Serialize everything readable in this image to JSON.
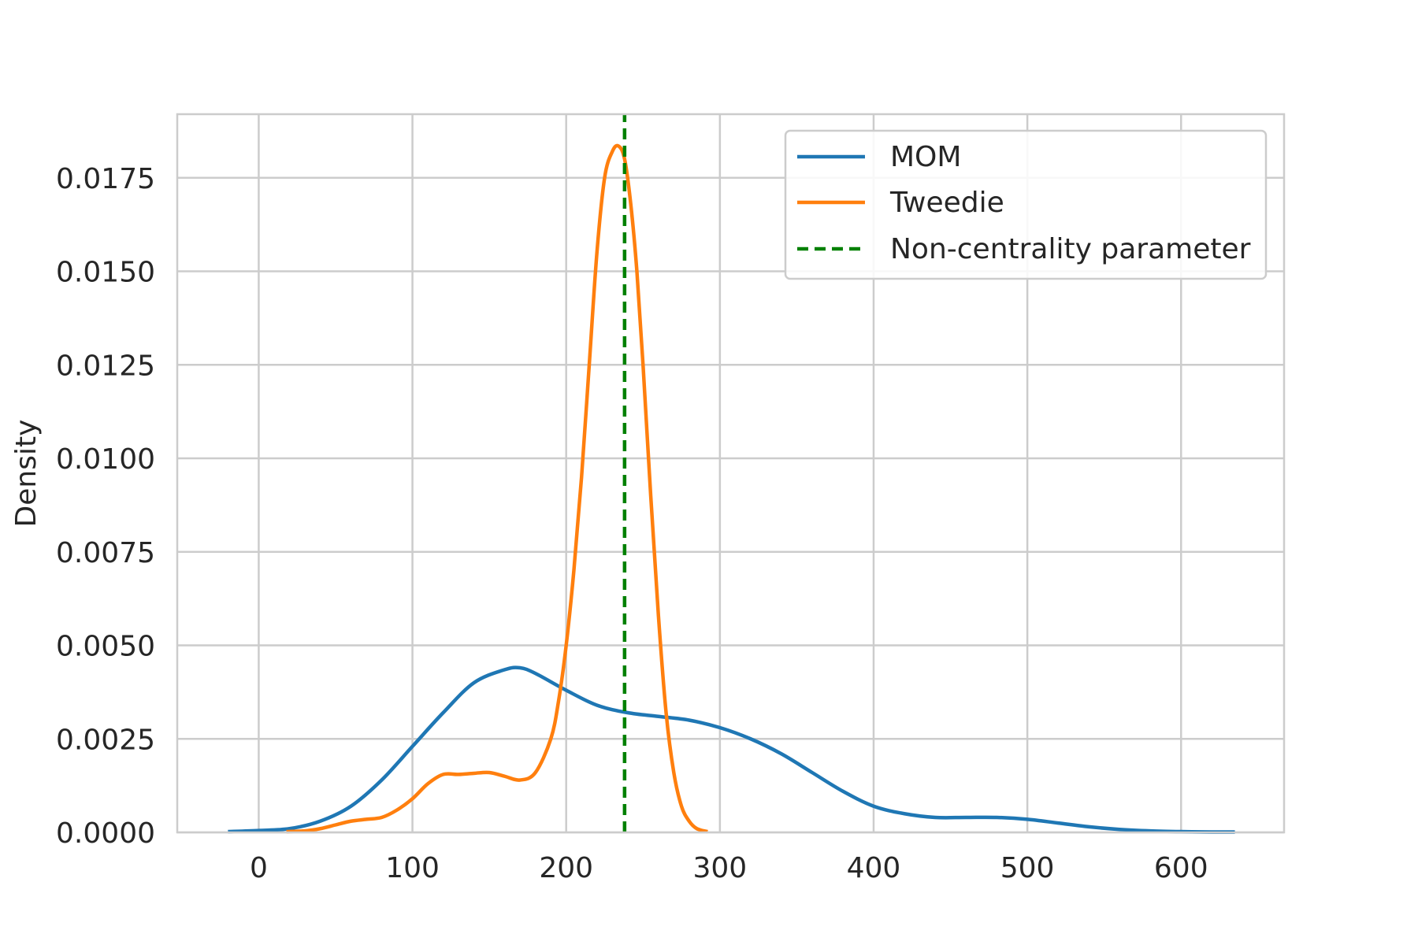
{
  "chart_data": {
    "type": "line",
    "title": "",
    "xlabel": "",
    "ylabel": "Density",
    "xlim": [
      -53,
      667
    ],
    "ylim": [
      0,
      0.0192
    ],
    "xticks": [
      0,
      100,
      200,
      300,
      400,
      500,
      600
    ],
    "xtick_labels": [
      "0",
      "100",
      "200",
      "300",
      "400",
      "500",
      "600"
    ],
    "yticks": [
      0,
      0.0025,
      0.005,
      0.0075,
      0.01,
      0.0125,
      0.015,
      0.0175
    ],
    "ytick_labels": [
      "0.0000",
      "0.0025",
      "0.0050",
      "0.0075",
      "0.0100",
      "0.0125",
      "0.0150",
      "0.0175"
    ],
    "grid": true,
    "legend_position": "top-right",
    "series": [
      {
        "name": "MOM",
        "color": "#1f77b4",
        "style": "solid",
        "x": [
          -20,
          0,
          20,
          40,
          60,
          80,
          100,
          120,
          140,
          160,
          170,
          180,
          200,
          220,
          240,
          260,
          280,
          300,
          320,
          340,
          360,
          380,
          400,
          420,
          440,
          460,
          480,
          500,
          520,
          540,
          560,
          580,
          600,
          620,
          635
        ],
        "y": [
          2e-05,
          5e-05,
          0.0001,
          0.0003,
          0.0007,
          0.0014,
          0.0023,
          0.0032,
          0.004,
          0.00435,
          0.0044,
          0.00425,
          0.0038,
          0.0034,
          0.0032,
          0.0031,
          0.003,
          0.0028,
          0.0025,
          0.0021,
          0.0016,
          0.0011,
          0.0007,
          0.0005,
          0.0004,
          0.0004,
          0.0004,
          0.00035,
          0.00025,
          0.00015,
          8e-05,
          4e-05,
          2e-05,
          1e-05,
          1e-05
        ]
      },
      {
        "name": "Tweedie",
        "color": "#ff7f0e",
        "style": "solid",
        "x": [
          18,
          30,
          40,
          50,
          60,
          70,
          80,
          90,
          100,
          110,
          120,
          130,
          140,
          150,
          160,
          170,
          180,
          190,
          195,
          200,
          205,
          210,
          215,
          220,
          225,
          230,
          234,
          238,
          242,
          246,
          250,
          255,
          260,
          265,
          270,
          275,
          280,
          285,
          292
        ],
        "y": [
          2e-05,
          4e-05,
          0.0001,
          0.0002,
          0.0003,
          0.00035,
          0.0004,
          0.0006,
          0.0009,
          0.0013,
          0.00155,
          0.00155,
          0.00158,
          0.0016,
          0.0015,
          0.0014,
          0.0016,
          0.0025,
          0.0035,
          0.005,
          0.007,
          0.0095,
          0.0125,
          0.0155,
          0.0175,
          0.0182,
          0.01835,
          0.018,
          0.0168,
          0.015,
          0.0125,
          0.009,
          0.0058,
          0.0032,
          0.0016,
          0.0007,
          0.0003,
          0.0001,
          2e-05
        ]
      },
      {
        "name": "Non-centrality parameter",
        "color": "#008000",
        "style": "dashed",
        "x": [
          238,
          238
        ],
        "y": [
          0,
          0.0192
        ]
      }
    ]
  }
}
